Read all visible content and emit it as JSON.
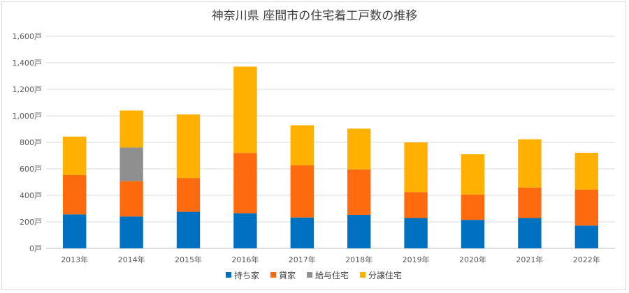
{
  "chart_data": {
    "type": "bar",
    "stacked": true,
    "title": "神奈川県 座間市の住宅着工戸数の推移",
    "categories": [
      "2013年",
      "2014年",
      "2015年",
      "2016年",
      "2017年",
      "2018年",
      "2019年",
      "2020年",
      "2021年",
      "2022年"
    ],
    "ylim": [
      0,
      1600
    ],
    "ytick_step": 200,
    "ytick_labels": [
      "0戸",
      "200戸",
      "400戸",
      "600戸",
      "800戸",
      "1,000戸",
      "1,200戸",
      "1,400戸",
      "1,600戸"
    ],
    "grid": true,
    "legend_position": "bottom",
    "series": [
      {
        "name": "持ち家",
        "color": "#0070c0",
        "values": [
          256,
          240,
          276,
          265,
          233,
          253,
          229,
          215,
          229,
          172
        ]
      },
      {
        "name": "貸家",
        "color": "#fe6a0e",
        "values": [
          298,
          267,
          255,
          455,
          394,
          343,
          196,
          191,
          230,
          272
        ]
      },
      {
        "name": "給与住宅",
        "color": "#8f8f8f",
        "values": [
          0,
          254,
          0,
          0,
          0,
          0,
          0,
          0,
          0,
          0
        ]
      },
      {
        "name": "分譲住宅",
        "color": "#ffb000",
        "values": [
          289,
          279,
          479,
          651,
          302,
          307,
          374,
          304,
          364,
          277
        ]
      }
    ]
  }
}
